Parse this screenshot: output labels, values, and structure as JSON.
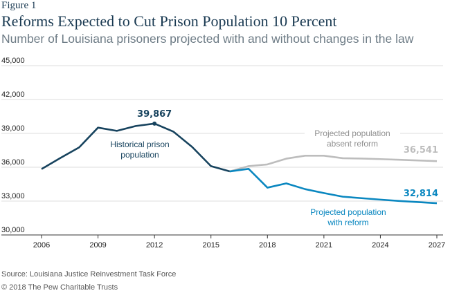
{
  "figure_label": "Figure 1",
  "chart_data": {
    "type": "line",
    "title": "Reforms Expected to Cut Prison Population 10 Percent",
    "subtitle": "Number of Louisiana prisoners projected with and without changes in the law",
    "xlim": [
      2006,
      2027
    ],
    "ylim": [
      30000,
      45000
    ],
    "x_ticks": [
      "2006",
      "2009",
      "2012",
      "2015",
      "2018",
      "2021",
      "2024",
      "2027"
    ],
    "y_ticks": [
      "30,000",
      "33,000",
      "36,000",
      "39,000",
      "42,000",
      "45,000"
    ],
    "grid": "horizontal",
    "series": [
      {
        "name": "Historical prison population",
        "color": "#17435e",
        "x": [
          2006,
          2007,
          2008,
          2009,
          2010,
          2011,
          2012,
          2013,
          2014,
          2015,
          2016
        ],
        "y": [
          35840,
          36820,
          37760,
          39510,
          39220,
          39650,
          39867,
          39160,
          37800,
          36100,
          35630
        ]
      },
      {
        "name": "Projected population absent reform",
        "color": "#bdbdbd",
        "x": [
          2016,
          2017,
          2018,
          2019,
          2020,
          2021,
          2022,
          2023,
          2024,
          2025,
          2026,
          2027
        ],
        "y": [
          35630,
          36100,
          36250,
          36760,
          37020,
          37020,
          36800,
          36770,
          36720,
          36660,
          36600,
          36541
        ]
      },
      {
        "name": "Projected population with reform",
        "color": "#0a87c0",
        "x": [
          2016,
          2017,
          2018,
          2019,
          2020,
          2021,
          2022,
          2023,
          2024,
          2025,
          2026,
          2027
        ],
        "y": [
          35630,
          35860,
          34190,
          34570,
          34060,
          33710,
          33390,
          33260,
          33130,
          33010,
          32910,
          32814
        ]
      }
    ],
    "annotations": [
      {
        "text": "39,867",
        "x": 2012,
        "y": 39867,
        "color": "#17435e"
      },
      {
        "text": "36,541",
        "x": 2027,
        "y": 36541,
        "color": "#bdbdbd"
      },
      {
        "text": "32,814",
        "x": 2027,
        "y": 32814,
        "color": "#0a87c0"
      }
    ],
    "series_labels": [
      {
        "lines": [
          "Historical prison",
          "population"
        ],
        "color": "#17435e"
      },
      {
        "lines": [
          "Projected population",
          "absent reform"
        ],
        "color": "#8f8f8f"
      },
      {
        "lines": [
          "Projected population",
          "with reform"
        ],
        "color": "#0a87c0"
      }
    ]
  },
  "source": "Source: Louisiana Justice Reinvestment Task Force",
  "copyright": "© 2018 The Pew Charitable Trusts"
}
